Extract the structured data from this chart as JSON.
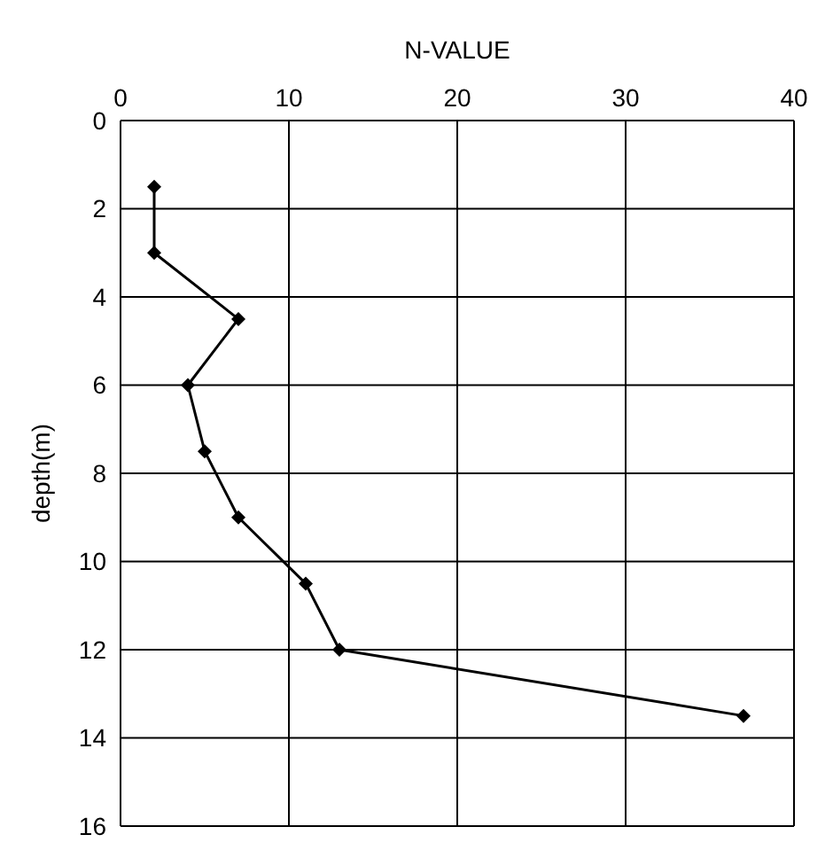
{
  "chart_data": {
    "type": "line",
    "xlabel": "N-VALUE",
    "ylabel": "depth(m)",
    "x": [
      2,
      2,
      7,
      4,
      5,
      7,
      11,
      13,
      37
    ],
    "series": [
      {
        "color": "#000000",
        "values": [
          1.5,
          3,
          4.5,
          6,
          7.5,
          9,
          10.5,
          12,
          13.5
        ]
      }
    ],
    "xlim": [
      0,
      40
    ],
    "xticks": [
      0,
      10,
      20,
      30,
      40
    ],
    "ylim": [
      16,
      0
    ],
    "yticks": [
      0,
      2,
      4,
      6,
      8,
      10,
      12,
      14,
      16
    ],
    "grid": true,
    "marker": "diamond",
    "line_style": "solid"
  }
}
